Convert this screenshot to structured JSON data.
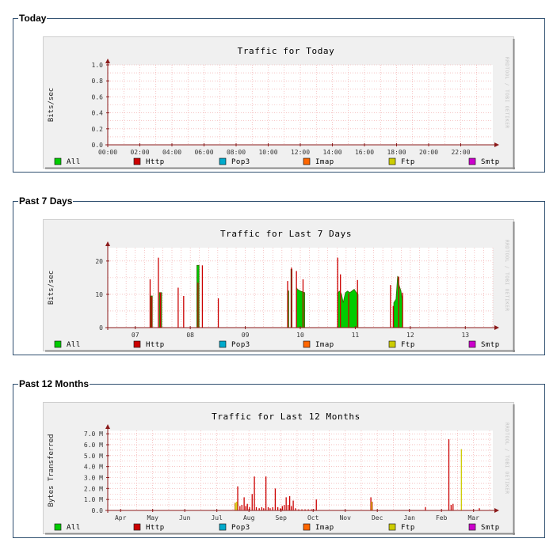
{
  "panels": [
    {
      "legend": "Today",
      "chart_data": {
        "type": "area",
        "title": "Traffic for Today",
        "ylabel": "Bits/sec",
        "watermark": "RRDTOOL / TOBI OETIKER",
        "ylim": [
          0,
          1.0
        ],
        "yticks": [
          "0.0",
          "0.2",
          "0.4",
          "0.6",
          "0.8",
          "1.0"
        ],
        "yticks_values": [
          0,
          0.2,
          0.4,
          0.6,
          0.8,
          1.0
        ],
        "xlim": [
          0,
          24
        ],
        "xticks": [
          "00:00",
          "02:00",
          "04:00",
          "06:00",
          "08:00",
          "10:00",
          "12:00",
          "14:00",
          "16:00",
          "18:00",
          "20:00",
          "22:00"
        ],
        "xticks_values": [
          0,
          2,
          4,
          6,
          8,
          10,
          12,
          14,
          16,
          18,
          20,
          22
        ],
        "grid": true,
        "series": [
          {
            "name": "All",
            "color": "#00cc00",
            "style": "area",
            "points": []
          },
          {
            "name": "Http",
            "color": "#cc0000",
            "style": "line",
            "points": []
          },
          {
            "name": "Pop3",
            "color": "#00aacc",
            "style": "line",
            "points": []
          },
          {
            "name": "Imap",
            "color": "#ff6600",
            "style": "line",
            "points": []
          },
          {
            "name": "Ftp",
            "color": "#cccc00",
            "style": "line",
            "points": []
          },
          {
            "name": "Smtp",
            "color": "#cc00cc",
            "style": "line",
            "points": []
          }
        ]
      }
    },
    {
      "legend": "Past 7 Days",
      "chart_data": {
        "type": "area",
        "title": "Traffic for Last 7 Days",
        "ylabel": "Bits/sec",
        "watermark": "RRDTOOL / TOBI OETIKER",
        "ylim": [
          0,
          24
        ],
        "yticks": [
          "0",
          "10",
          "20"
        ],
        "yticks_values": [
          0,
          10,
          20
        ],
        "xlim": [
          6.5,
          13.5
        ],
        "xticks": [
          "07",
          "08",
          "09",
          "10",
          "11",
          "12",
          "13"
        ],
        "xticks_values": [
          7,
          8,
          9,
          10,
          11,
          12,
          13
        ],
        "grid": true,
        "series": [
          {
            "name": "All",
            "color": "#00cc00",
            "style": "area",
            "segments": [
              [
                [
                  7.28,
                  9.5
                ],
                [
                  7.31,
                  9.5
                ]
              ],
              [
                [
                  7.44,
                  10.5
                ],
                [
                  7.48,
                  10.5
                ]
              ],
              [
                [
                  8.12,
                  18.7
                ],
                [
                  8.16,
                  18.7
                ]
              ],
              [
                [
                  9.77,
                  11
                ],
                [
                  9.79,
                  11
                ]
              ],
              [
                [
                  9.83,
                  17.5
                ],
                [
                  9.85,
                  17.5
                ]
              ],
              [
                [
                  9.93,
                  12
                ],
                [
                  9.95,
                  11.5
                ],
                [
                  10.0,
                  11
                ],
                [
                  10.05,
                  10.7
                ],
                [
                  10.08,
                  10.5
                ]
              ],
              [
                [
                  10.68,
                  10.5
                ],
                [
                  10.72,
                  11
                ],
                [
                  10.75,
                  10
                ],
                [
                  10.78,
                  7.5
                ],
                [
                  10.82,
                  10.5
                ],
                [
                  10.86,
                  11
                ],
                [
                  10.9,
                  10.5
                ],
                [
                  10.94,
                  11
                ],
                [
                  10.98,
                  11.5
                ],
                [
                  11.02,
                  10.5
                ],
                [
                  11.05,
                  10
                ]
              ],
              [
                [
                  11.7,
                  7.5
                ],
                [
                  11.74,
                  8.5
                ],
                [
                  11.77,
                  15.5
                ],
                [
                  11.8,
                  12.5
                ],
                [
                  11.83,
                  11
                ],
                [
                  11.86,
                  7.5
                ]
              ]
            ]
          },
          {
            "name": "Http",
            "color": "#cc0000",
            "style": "impulse",
            "points": [
              [
                7.27,
                14.5
              ],
              [
                7.3,
                9.3
              ],
              [
                7.42,
                21
              ],
              [
                7.46,
                10.5
              ],
              [
                7.78,
                12
              ],
              [
                7.88,
                9.5
              ],
              [
                8.14,
                13.5
              ],
              [
                8.22,
                18.7
              ],
              [
                8.51,
                8.8
              ],
              [
                9.77,
                14
              ],
              [
                9.84,
                18
              ],
              [
                9.93,
                17
              ],
              [
                10.05,
                14.5
              ],
              [
                10.68,
                21
              ],
              [
                10.73,
                16
              ],
              [
                10.88,
                10.3
              ],
              [
                11.04,
                14.3
              ],
              [
                11.64,
                12.8
              ],
              [
                11.69,
                6.5
              ],
              [
                11.79,
                15.3
              ],
              [
                11.86,
                10.5
              ]
            ]
          },
          {
            "name": "Pop3",
            "color": "#00aacc",
            "style": "line",
            "points": []
          },
          {
            "name": "Imap",
            "color": "#ff6600",
            "style": "line",
            "points": []
          },
          {
            "name": "Ftp",
            "color": "#cccc00",
            "style": "line",
            "points": []
          },
          {
            "name": "Smtp",
            "color": "#cc00cc",
            "style": "line",
            "points": []
          }
        ]
      }
    },
    {
      "legend": "Past 12 Months",
      "chart_data": {
        "type": "area",
        "title": "Traffic for Last 12 Months",
        "ylabel": "Bytes Transferred",
        "watermark": "RRDTOOL / TOBI OETIKER",
        "ylim": [
          0,
          7.3
        ],
        "yticks": [
          "0.0",
          "1.0 M",
          "2.0 M",
          "3.0 M",
          "4.0 M",
          "5.0 M",
          "6.0 M",
          "7.0 M"
        ],
        "yticks_values": [
          0,
          1,
          2,
          3,
          4,
          5,
          6,
          7
        ],
        "xlim": [
          0,
          12
        ],
        "xticks": [
          "Apr",
          "May",
          "Jun",
          "Jul",
          "Aug",
          "Sep",
          "Oct",
          "Nov",
          "Dec",
          "Jan",
          "Feb",
          "Mar"
        ],
        "xticks_values": [
          0.4,
          1.4,
          2.4,
          3.4,
          4.4,
          5.4,
          6.4,
          7.4,
          8.4,
          9.4,
          10.4,
          11.4
        ],
        "grid": true,
        "series": [
          {
            "name": "All",
            "color": "#00cc00",
            "style": "area",
            "segments": []
          },
          {
            "name": "Http",
            "color": "#cc0000",
            "style": "impulse",
            "points": [
              [
                3.97,
                0.7
              ],
              [
                4.05,
                2.2
              ],
              [
                4.12,
                0.4
              ],
              [
                4.18,
                0.5
              ],
              [
                4.25,
                1.2
              ],
              [
                4.3,
                0.4
              ],
              [
                4.35,
                0.6
              ],
              [
                4.42,
                0.3
              ],
              [
                4.5,
                1.5
              ],
              [
                4.57,
                3.1
              ],
              [
                4.63,
                0.3
              ],
              [
                4.72,
                0.2
              ],
              [
                4.8,
                0.3
              ],
              [
                4.86,
                0.2
              ],
              [
                4.93,
                3.1
              ],
              [
                5.0,
                0.3
              ],
              [
                5.06,
                0.2
              ],
              [
                5.14,
                0.3
              ],
              [
                5.22,
                2.0
              ],
              [
                5.3,
                0.3
              ],
              [
                5.38,
                0.2
              ],
              [
                5.44,
                0.4
              ],
              [
                5.5,
                0.5
              ],
              [
                5.56,
                1.2
              ],
              [
                5.62,
                0.5
              ],
              [
                5.67,
                1.3
              ],
              [
                5.72,
                0.4
              ],
              [
                5.78,
                0.9
              ],
              [
                5.85,
                0.2
              ],
              [
                5.95,
                0.1
              ],
              [
                6.05,
                0.1
              ],
              [
                6.15,
                0.1
              ],
              [
                6.25,
                0.1
              ],
              [
                6.35,
                0.1
              ],
              [
                6.42,
                0.1
              ],
              [
                6.5,
                1.0
              ],
              [
                8.2,
                1.2
              ],
              [
                8.24,
                0.8
              ],
              [
                9.9,
                0.3
              ],
              [
                10.63,
                6.5
              ],
              [
                10.7,
                0.5
              ],
              [
                10.76,
                0.6
              ],
              [
                11.58,
                0.2
              ]
            ]
          },
          {
            "name": "Pop3",
            "color": "#00aacc",
            "style": "line",
            "points": []
          },
          {
            "name": "Imap",
            "color": "#ff6600",
            "style": "line",
            "points": []
          },
          {
            "name": "Ftp",
            "color": "#cccc00",
            "style": "impulse",
            "points": [
              [
                3.98,
                0.7
              ],
              [
                4.02,
                0.8
              ],
              [
                8.22,
                0.8
              ],
              [
                11.02,
                5.6
              ]
            ]
          },
          {
            "name": "Smtp",
            "color": "#cc00cc",
            "style": "line",
            "points": []
          }
        ]
      }
    }
  ]
}
